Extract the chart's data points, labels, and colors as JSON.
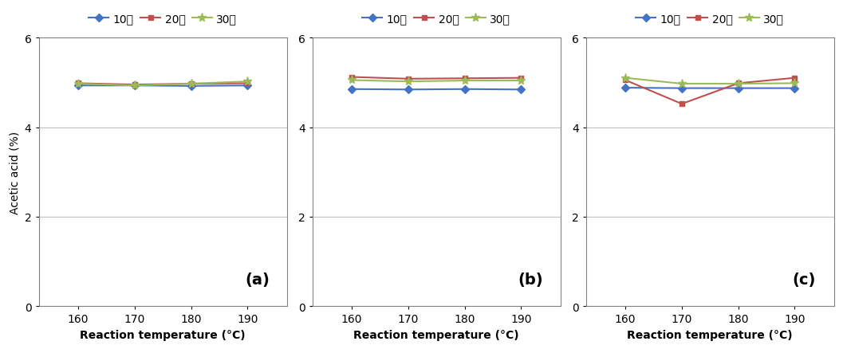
{
  "x": [
    160,
    170,
    180,
    190
  ],
  "subplot_a": {
    "line10": [
      4.93,
      4.93,
      4.92,
      4.93
    ],
    "line20": [
      4.98,
      4.95,
      4.97,
      4.98
    ],
    "line30": [
      4.97,
      4.93,
      4.97,
      5.02
    ],
    "label": "(a)"
  },
  "subplot_b": {
    "line10": [
      4.85,
      4.84,
      4.85,
      4.84
    ],
    "line20": [
      5.12,
      5.08,
      5.09,
      5.1
    ],
    "line30": [
      5.05,
      5.02,
      5.04,
      5.04
    ],
    "label": "(b)"
  },
  "subplot_c": {
    "line10": [
      4.88,
      4.87,
      4.87,
      4.87
    ],
    "line20": [
      5.05,
      4.52,
      4.98,
      5.1
    ],
    "line30": [
      5.1,
      4.97,
      4.97,
      4.98
    ],
    "label": "(c)"
  },
  "colors": {
    "line10": "#4472C4",
    "line20": "#C0504D",
    "line30": "#9BBB59"
  },
  "legend_labels": [
    "10분",
    "20분",
    "30분"
  ],
  "ylim": [
    0,
    6
  ],
  "yticks": [
    0,
    2,
    4,
    6
  ],
  "ylabel": "Acetic acid (%)",
  "xlabel": "Reaction temperature (°C)",
  "x_ticks": [
    160,
    170,
    180,
    190
  ],
  "background_color": "#ffffff",
  "grid_color": "#c0c0c0",
  "line_width": 1.5,
  "marker_size": 5
}
